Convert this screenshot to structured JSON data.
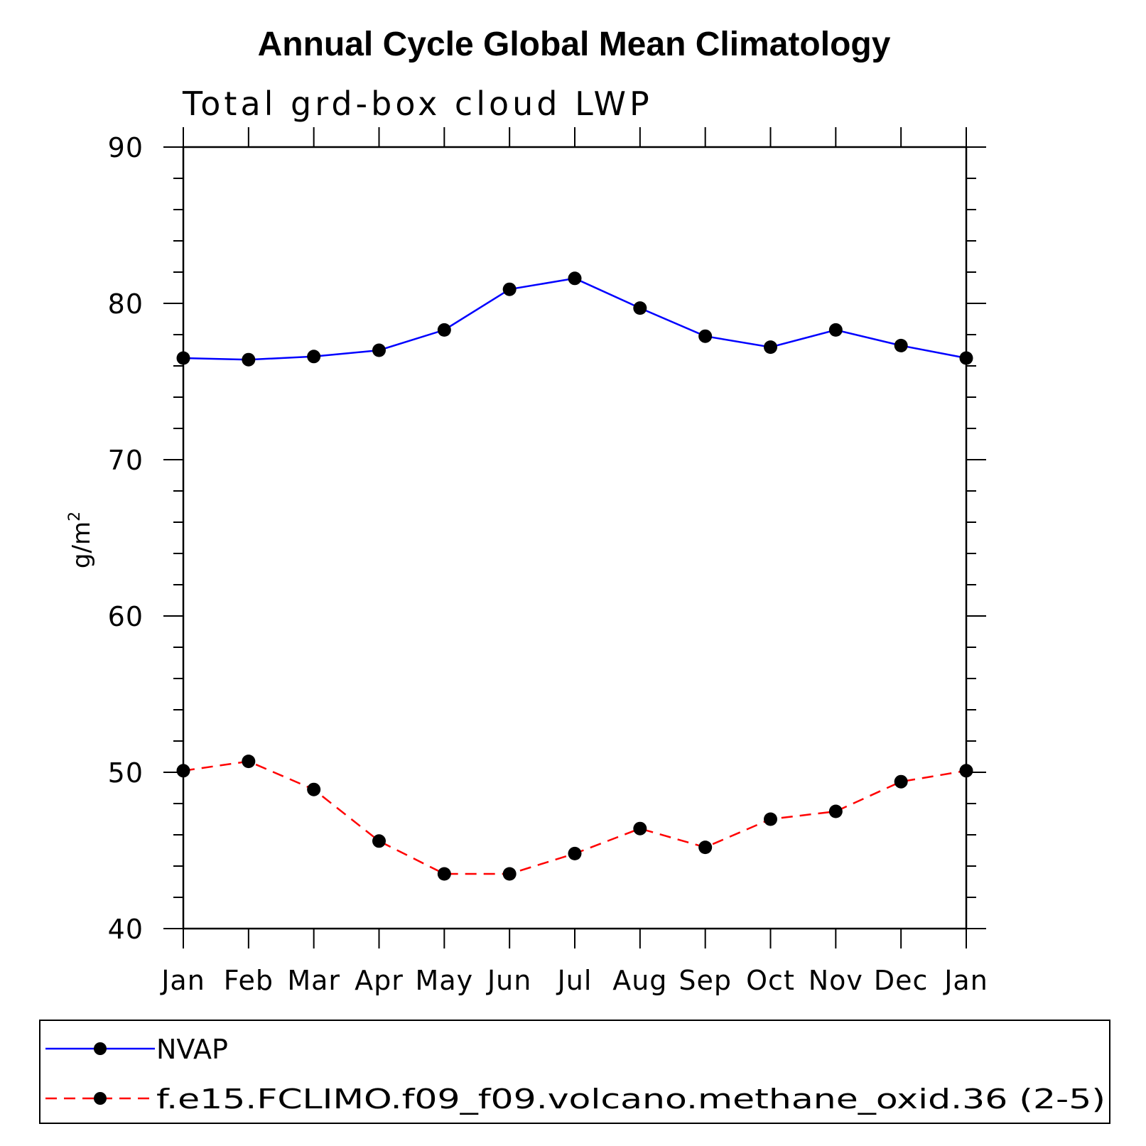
{
  "chart_data": {
    "type": "line",
    "title": "Annual Cycle Global Mean Climatology",
    "subtitle": "Total grd-box cloud LWP",
    "xlabel": "",
    "ylabel": "g/m",
    "ylabel_superscript": "2",
    "ylim": [
      40,
      90
    ],
    "yticks": [
      40,
      50,
      60,
      70,
      80,
      90
    ],
    "categories": [
      "Jan",
      "Feb",
      "Mar",
      "Apr",
      "May",
      "Jun",
      "Jul",
      "Aug",
      "Sep",
      "Oct",
      "Nov",
      "Dec",
      "Jan"
    ],
    "series": [
      {
        "name": "NVAP",
        "color": "#0000ff",
        "dash": "solid",
        "marker": "circle",
        "values": [
          76.5,
          76.4,
          76.6,
          77.0,
          78.3,
          80.9,
          81.6,
          79.7,
          77.9,
          77.2,
          78.3,
          77.3,
          76.5
        ]
      },
      {
        "name": "f.e15.FCLIMO.f09_f09.volcano.methane_oxid.36 (2-5)",
        "color": "#ff0000",
        "dash": "dashed",
        "marker": "circle",
        "values": [
          50.1,
          50.7,
          48.9,
          45.6,
          43.5,
          43.5,
          44.8,
          46.4,
          45.2,
          47.0,
          47.5,
          49.4,
          50.1
        ]
      }
    ],
    "legend_placement": "bottom"
  }
}
